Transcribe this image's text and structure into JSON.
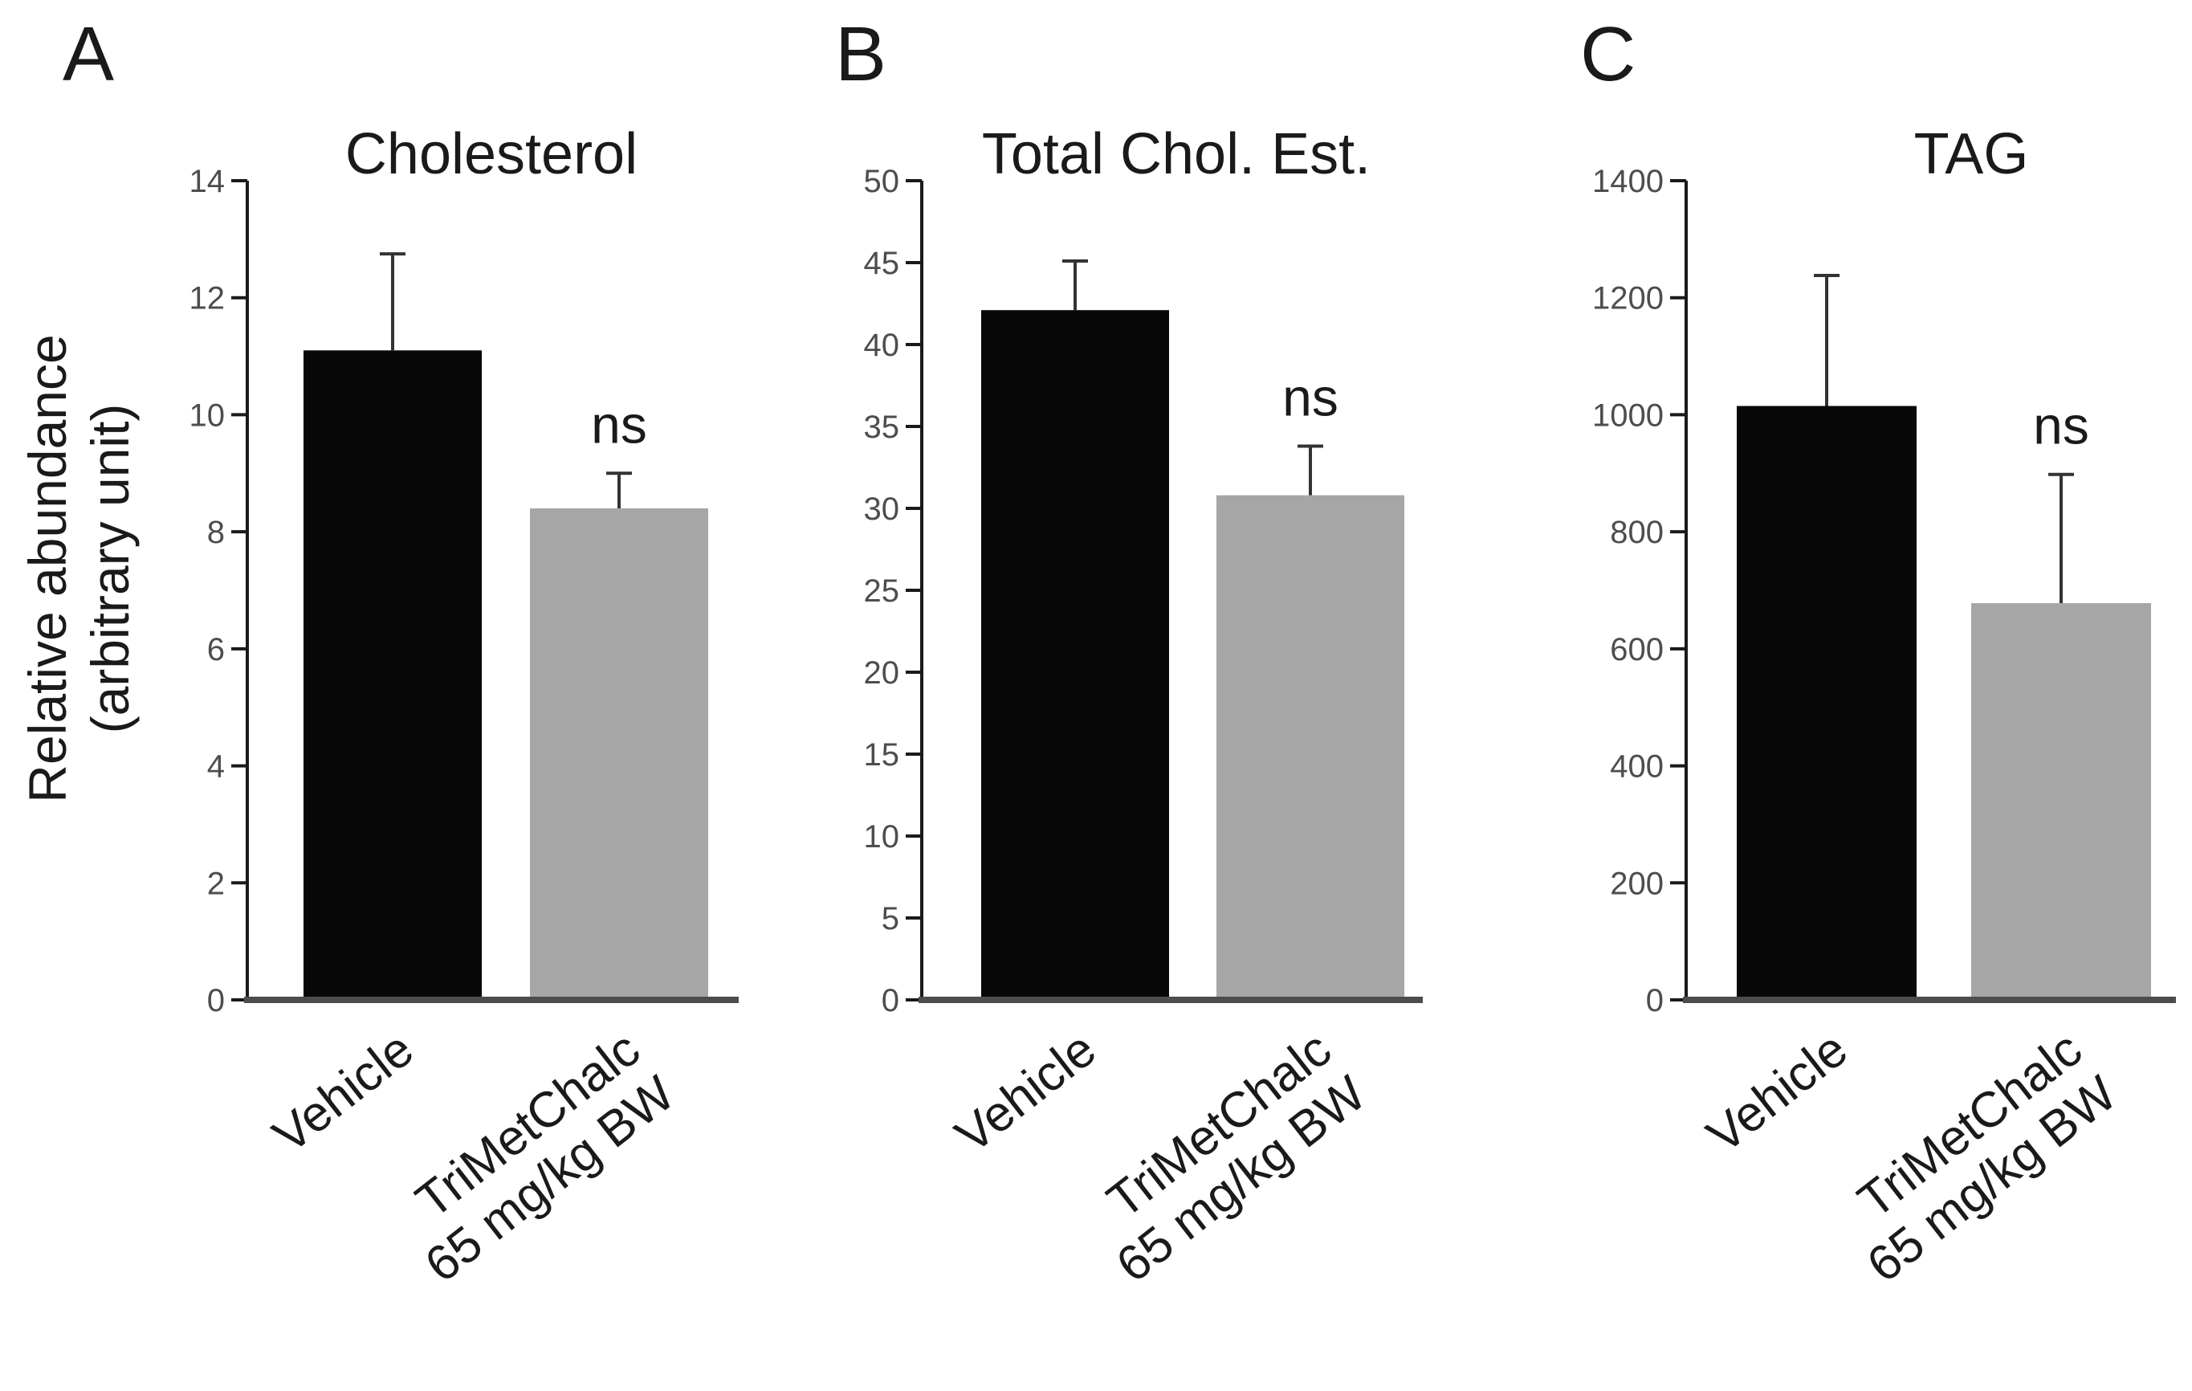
{
  "y_axis_label": [
    "Relative abundance",
    "(arbitrary unit)"
  ],
  "bar_colors": {
    "vehicle": "#080808",
    "treatment": "#a6a6a6"
  },
  "chart_data": [
    {
      "type": "bar",
      "panel": "A",
      "title": "Cholesterol",
      "categories": [
        [
          "Vehicle"
        ],
        [
          "TriMetChalc",
          "65 mg/kg BW"
        ]
      ],
      "values": [
        11.1,
        8.4
      ],
      "errors": [
        1.65,
        0.6
      ],
      "significance": [
        "",
        "ns"
      ],
      "ylim": [
        0,
        14
      ],
      "yticks": [
        0,
        2,
        4,
        6,
        8,
        10,
        12,
        14
      ]
    },
    {
      "type": "bar",
      "panel": "B",
      "title": "Total Chol. Est.",
      "categories": [
        [
          "Vehicle"
        ],
        [
          "TriMetChalc",
          "65 mg/kg BW"
        ]
      ],
      "values": [
        42.1,
        30.8
      ],
      "errors": [
        3.0,
        3.0
      ],
      "significance": [
        "",
        "ns"
      ],
      "ylim": [
        0,
        50
      ],
      "yticks": [
        0,
        5,
        10,
        15,
        20,
        25,
        30,
        35,
        40,
        45,
        50
      ]
    },
    {
      "type": "bar",
      "panel": "C",
      "title": "TAG",
      "categories": [
        [
          "Vehicle"
        ],
        [
          "TriMetChalc",
          "65 mg/kg BW"
        ]
      ],
      "values": [
        1015,
        678
      ],
      "errors": [
        223,
        220
      ],
      "significance": [
        "",
        "ns"
      ],
      "ylim": [
        0,
        1400
      ],
      "yticks": [
        0,
        200,
        400,
        600,
        800,
        1000,
        1200,
        1400
      ]
    }
  ]
}
